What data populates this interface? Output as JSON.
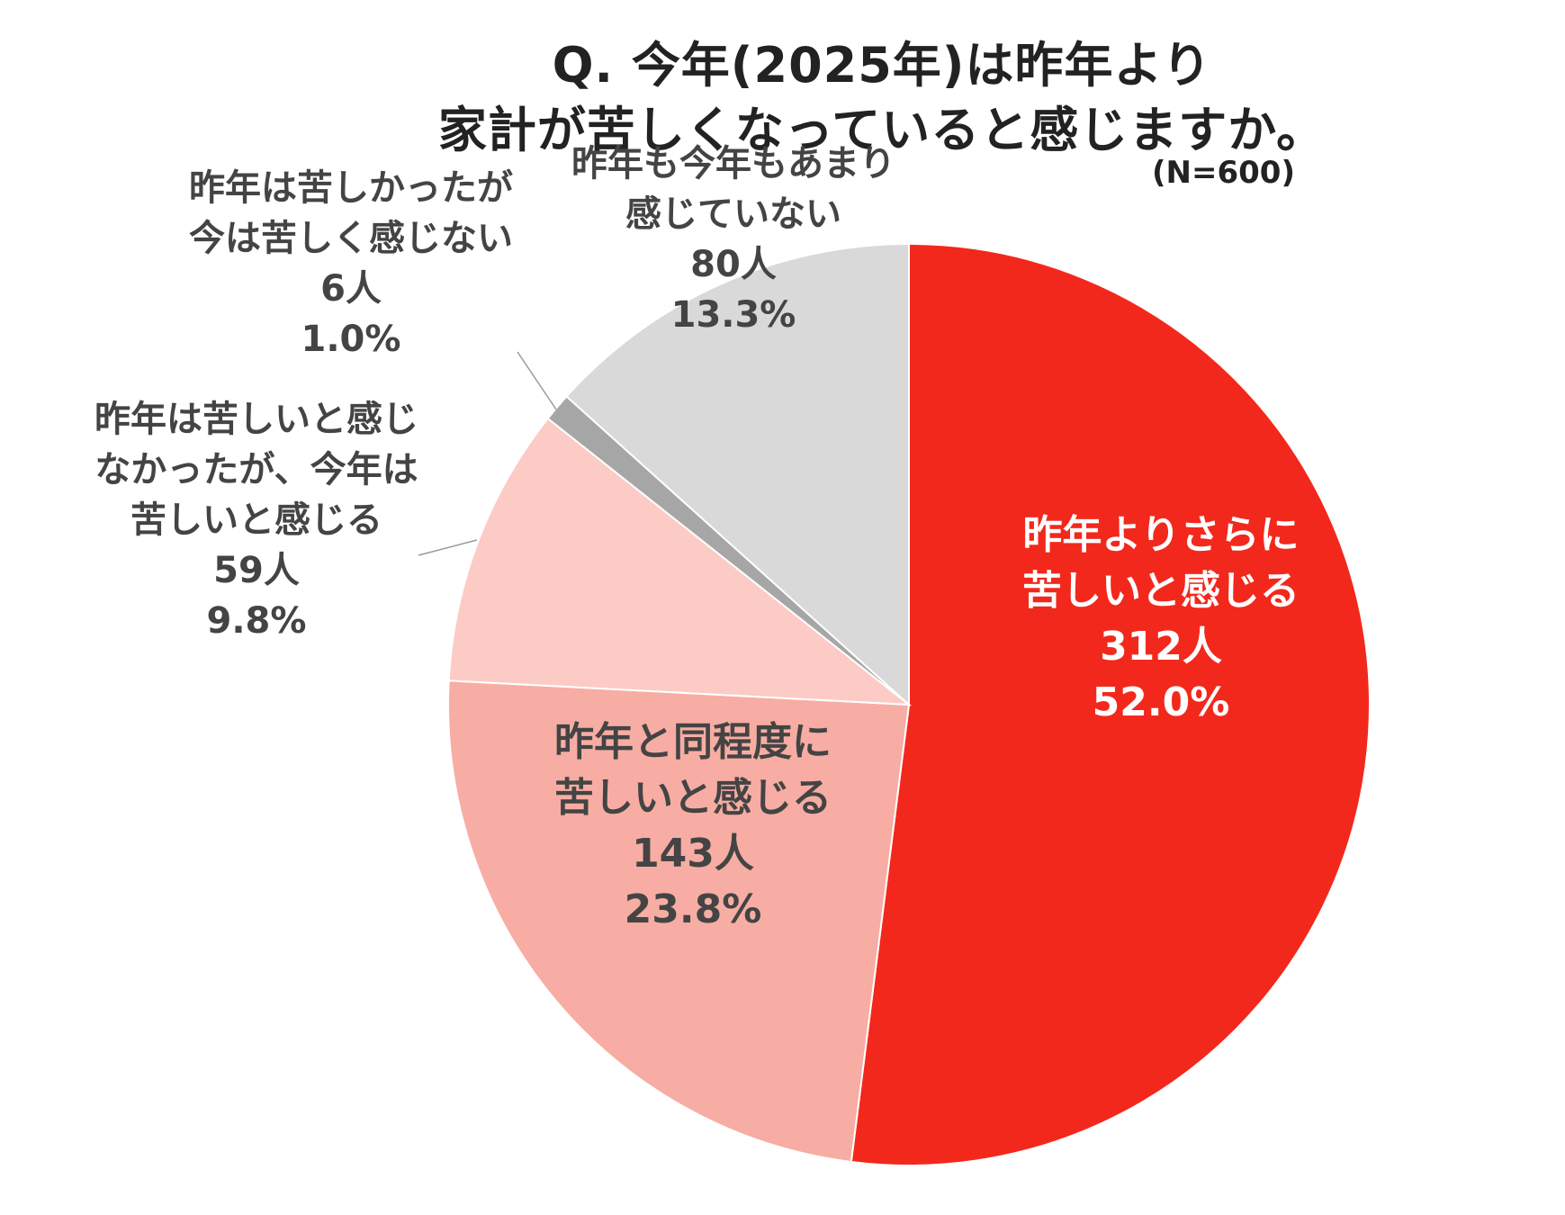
{
  "title": {
    "line1": "Q. 今年(2025年)は昨年より",
    "line2": "家計が苦しくなっていると感じますか。"
  },
  "note": "(N=600)",
  "colors": {
    "s1": "#f3281c",
    "s2": "#f7ada3",
    "s3": "#fccbc5",
    "s4": "#a6a6a6",
    "s5": "#d9d9d9"
  },
  "chart_data": {
    "type": "pie",
    "slices": [
      {
        "label_lines": [
          "昨年よりさらに",
          "苦しいと感じる"
        ],
        "count": "312人",
        "percent": "52.0%",
        "value": 312,
        "color": "#f3281c"
      },
      {
        "label_lines": [
          "昨年と同程度に",
          "苦しいと感じる"
        ],
        "count": "143人",
        "percent": "23.8%",
        "value": 143,
        "color": "#f7ada3"
      },
      {
        "label_lines": [
          "昨年は苦しいと感じ",
          "なかったが、今年は",
          "苦しいと感じる"
        ],
        "count": "59人",
        "percent": "9.8%",
        "value": 59,
        "color": "#fccbc5"
      },
      {
        "label_lines": [
          "昨年は苦しかったが",
          "今は苦しく感じない"
        ],
        "count": "6人",
        "percent": "1.0%",
        "value": 6,
        "color": "#a6a6a6"
      },
      {
        "label_lines": [
          "昨年も今年もあまり",
          "感じていない"
        ],
        "count": "80人",
        "percent": "13.3%",
        "value": 80,
        "color": "#d9d9d9"
      }
    ]
  }
}
